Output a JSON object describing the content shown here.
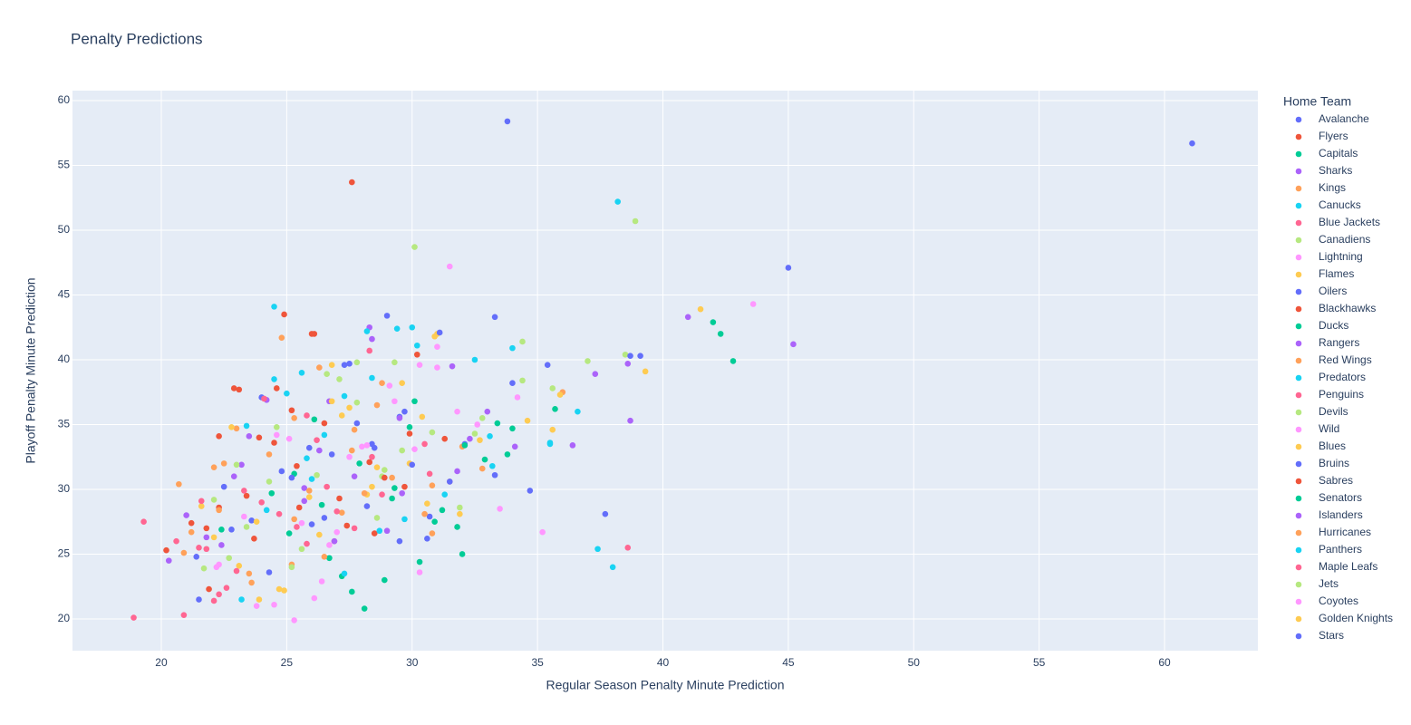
{
  "chart_data": {
    "type": "scatter",
    "title": "Penalty Predictions",
    "x_label": "Regular Season Penalty Minute Prediction",
    "y_label": "Playoff Penalty Minute Prediction",
    "legend_title": "Home Team",
    "legend_position": "right",
    "grid": true,
    "xlim": [
      16.46,
      63.72
    ],
    "ylim": [
      17.55,
      60.77
    ],
    "xticks": [
      20,
      25,
      30,
      35,
      40,
      45,
      50,
      55,
      60
    ],
    "yticks": [
      20,
      25,
      30,
      35,
      40,
      45,
      50,
      55,
      60
    ],
    "series": [
      {
        "name": "Avalanche",
        "color": "#636efa",
        "x": [
          33.8,
          61.1,
          45,
          22.5,
          26,
          28.4,
          30.7,
          24.8,
          29.5,
          33.3
        ],
        "values": [
          58.4,
          56.7,
          47.1,
          30.2,
          27.3,
          33.5,
          27.9,
          31.4,
          35.6,
          43.3
        ]
      },
      {
        "name": "Flyers",
        "color": "#EF553B",
        "x": [
          27.6,
          24.9,
          22.9,
          20.2,
          25.5,
          28.3,
          30.2,
          26.1,
          23.4,
          21.8
        ],
        "values": [
          53.7,
          43.5,
          37.8,
          25.3,
          28.6,
          32.1,
          40.4,
          42,
          29.5,
          27
        ]
      },
      {
        "name": "Capitals",
        "color": "#00cc96",
        "x": [
          42.3,
          28.1,
          32,
          27.6,
          25.3,
          30.3,
          33.8,
          26.4,
          29.2,
          22.4
        ],
        "values": [
          42,
          20.8,
          25,
          22.1,
          31.2,
          24.4,
          32.7,
          28.8,
          29.3,
          26.9
        ]
      },
      {
        "name": "Sharks",
        "color": "#ab63fa",
        "x": [
          41,
          45.2,
          38.7,
          28.3,
          21,
          26.7,
          23.2,
          31.6,
          29,
          25.7
        ],
        "values": [
          43.3,
          41.2,
          35.3,
          42.5,
          28,
          36.8,
          31.9,
          39.5,
          26.8,
          30.1
        ]
      },
      {
        "name": "Kings",
        "color": "#FFA15A",
        "x": [
          24.8,
          20.7,
          26.3,
          22.5,
          30.8,
          28.6,
          25.2,
          32,
          27.2,
          23.6
        ],
        "values": [
          41.7,
          30.4,
          39.4,
          32,
          26.6,
          36.5,
          24.2,
          33.3,
          28.2,
          22.8
        ]
      },
      {
        "name": "Canucks",
        "color": "#19d3f3",
        "x": [
          38.2,
          24.5,
          38,
          37.4,
          36.6,
          35.5,
          30,
          28.4,
          25.6,
          23.2
        ],
        "values": [
          52.2,
          44.1,
          24,
          25.4,
          36,
          33.5,
          42.5,
          38.6,
          39,
          21.5
        ]
      },
      {
        "name": "Blue Jackets",
        "color": "#FF6692",
        "x": [
          18.9,
          38.6,
          19.3,
          22.1,
          25.8,
          28.3,
          24,
          30.5,
          21.5,
          26.9
        ],
        "values": [
          20.1,
          25.5,
          27.5,
          21.4,
          35.7,
          40.7,
          29,
          33.5,
          25.5,
          26
        ]
      },
      {
        "name": "Canadiens",
        "color": "#B6E880",
        "x": [
          38.9,
          30.1,
          37,
          38.5,
          34.4,
          21.7,
          25.2,
          27.8,
          32.5,
          28.8
        ],
        "values": [
          50.7,
          48.7,
          39.9,
          40.4,
          41.4,
          23.9,
          24,
          36.7,
          34.3,
          31
        ]
      },
      {
        "name": "Lightning",
        "color": "#FF97FF",
        "x": [
          31.5,
          43.6,
          35.2,
          30.3,
          31,
          28,
          23.8,
          26.7,
          33.5,
          25.3
        ],
        "values": [
          47.2,
          44.3,
          26.7,
          39.6,
          41,
          33.3,
          21,
          25.7,
          28.5,
          19.9
        ]
      },
      {
        "name": "Flames",
        "color": "#FECB52",
        "x": [
          41.5,
          39.3,
          35.6,
          31,
          26.8,
          23.9,
          28.6,
          30.6,
          22.1,
          34.6
        ],
        "values": [
          43.9,
          39.1,
          34.6,
          42,
          36.8,
          21.5,
          31.7,
          28.9,
          26.3,
          35.3
        ]
      },
      {
        "name": "Oilers",
        "color": "#636efa",
        "x": [
          39.1,
          35.4,
          33.3,
          24,
          27.5,
          29.5,
          31.1,
          21.5,
          25.9,
          28.2
        ],
        "values": [
          40.3,
          39.6,
          31.1,
          37.1,
          39.7,
          26,
          42.1,
          21.5,
          33.2,
          28.7
        ]
      },
      {
        "name": "Blackhawks",
        "color": "#EF553B",
        "x": [
          26,
          23.9,
          22.3,
          27.1,
          24.6,
          29.7,
          21.2,
          31.3,
          25.2,
          28.5
        ],
        "values": [
          42,
          34,
          28.6,
          29.3,
          37.8,
          30.2,
          27.4,
          33.9,
          36.1,
          26.6
        ]
      },
      {
        "name": "Ducks",
        "color": "#00cc96",
        "x": [
          42,
          42.8,
          35.7,
          34,
          32.9,
          30.1,
          27.2,
          29.3,
          26.1,
          31.8
        ],
        "values": [
          42.9,
          39.9,
          36.2,
          34.7,
          32.3,
          36.8,
          23.3,
          30.1,
          35.4,
          27.1
        ]
      },
      {
        "name": "Rangers",
        "color": "#ab63fa",
        "x": [
          38.6,
          37.3,
          34.1,
          29.5,
          27.7,
          24.2,
          22.4,
          32.3,
          20.3,
          26.3
        ],
        "values": [
          39.7,
          38.9,
          33.3,
          35.5,
          31,
          36.9,
          25.7,
          33.9,
          24.5,
          33
        ]
      },
      {
        "name": "Red Wings",
        "color": "#FFA15A",
        "x": [
          36,
          32.8,
          28.8,
          25.3,
          23.5,
          27.7,
          30.8,
          22.1,
          20.9,
          25.9
        ],
        "values": [
          37.5,
          31.6,
          38.2,
          27.7,
          23.5,
          34.6,
          30.3,
          31.7,
          25.1,
          29.9
        ]
      },
      {
        "name": "Predators",
        "color": "#19d3f3",
        "x": [
          34,
          32.5,
          30.2,
          28.2,
          26.5,
          24.5,
          25.8,
          29.7,
          33.1,
          27.3
        ],
        "values": [
          40.9,
          40,
          41.1,
          42.2,
          34.2,
          38.5,
          32.4,
          27.7,
          34.1,
          23.5
        ]
      },
      {
        "name": "Penguins",
        "color": "#FF6692",
        "x": [
          21.8,
          24.1,
          26.2,
          28.8,
          23.3,
          20.6,
          31.5,
          27,
          25.4,
          22.6
        ],
        "values": [
          25.4,
          37,
          33.8,
          29.6,
          29.9,
          26,
          30.6,
          28.3,
          27.1,
          22.4
        ]
      },
      {
        "name": "Devils",
        "color": "#B6E880",
        "x": [
          35.6,
          32.8,
          29.3,
          27.1,
          24.6,
          23,
          31.9,
          26.2,
          28.6,
          22.7
        ],
        "values": [
          37.8,
          35.5,
          39.8,
          38.5,
          34.8,
          31.9,
          28.6,
          31.1,
          27.8,
          24.7
        ]
      },
      {
        "name": "Wild",
        "color": "#FF97FF",
        "x": [
          34.2,
          32.6,
          31,
          29.1,
          27.5,
          24.6,
          22.3,
          26.4,
          25.6,
          30.1
        ],
        "values": [
          37.1,
          35,
          39.4,
          38,
          32.5,
          34.2,
          24.2,
          22.9,
          27.4,
          33.1
        ]
      },
      {
        "name": "Blues",
        "color": "#FECB52",
        "x": [
          35.9,
          32.7,
          30.4,
          27.5,
          24.9,
          23.1,
          28.2,
          26.3,
          29.9,
          21.6
        ],
        "values": [
          37.3,
          33.8,
          35.6,
          36.3,
          22.2,
          24.1,
          29.6,
          26.5,
          32,
          28.7
        ]
      },
      {
        "name": "Bruins",
        "color": "#636efa",
        "x": [
          37.7,
          34,
          32.1,
          29.7,
          27.8,
          25.2,
          23.6,
          26.8,
          30.6,
          28.5
        ],
        "values": [
          28.1,
          38.2,
          33.5,
          36,
          35.1,
          30.9,
          27.6,
          32.7,
          26.2,
          33.2
        ]
      },
      {
        "name": "Sabres",
        "color": "#EF553B",
        "x": [
          23.1,
          24.5,
          26.5,
          22.3,
          28.9,
          21.9,
          25.4,
          29.9,
          27.4,
          23.7
        ],
        "values": [
          37.7,
          33.6,
          35.1,
          34.1,
          30.9,
          22.3,
          31.8,
          34.3,
          27.2,
          26.2
        ]
      },
      {
        "name": "Senators",
        "color": "#00cc96",
        "x": [
          33.4,
          32.1,
          31.2,
          28.9,
          26.7,
          25.1,
          24.4,
          29.9,
          27.9,
          30.9
        ],
        "values": [
          35.1,
          33.4,
          28.4,
          23,
          24.7,
          26.6,
          29.7,
          34.8,
          32,
          27.5
        ]
      },
      {
        "name": "Islanders",
        "color": "#ab63fa",
        "x": [
          36.4,
          33,
          28.4,
          25.7,
          23.5,
          21.8,
          26.9,
          31.8,
          29.6,
          22.9
        ],
        "values": [
          33.4,
          36,
          41.6,
          29.1,
          34.1,
          26.3,
          26,
          31.4,
          29.7,
          31
        ]
      },
      {
        "name": "Hurricanes",
        "color": "#FFA15A",
        "x": [
          30.5,
          27.6,
          25.3,
          23,
          21.2,
          28.1,
          26.5,
          24.3,
          29.2,
          22.3
        ],
        "values": [
          28.1,
          33,
          35.5,
          34.7,
          26.7,
          29.7,
          24.8,
          32.7,
          30.9,
          28.4
        ]
      },
      {
        "name": "Panthers",
        "color": "#19d3f3",
        "x": [
          35.5,
          33.2,
          29.4,
          27.3,
          25,
          23.4,
          24.2,
          31.3,
          28.7,
          26
        ],
        "values": [
          33.6,
          31.8,
          42.4,
          37.2,
          37.4,
          34.9,
          28.4,
          29.6,
          26.8,
          30.8
        ]
      },
      {
        "name": "Maple Leafs",
        "color": "#FF6692",
        "x": [
          20.9,
          22.3,
          24.7,
          26.6,
          28.4,
          23,
          25.8,
          21.6,
          27.7,
          30.7
        ],
        "values": [
          20.3,
          21.9,
          28.1,
          30.2,
          32.5,
          23.7,
          25.8,
          29.1,
          27,
          31.2
        ]
      },
      {
        "name": "Jets",
        "color": "#B6E880",
        "x": [
          34.4,
          30.8,
          27.8,
          26.6,
          24.3,
          22.1,
          25.6,
          28.9,
          23.4,
          29.6
        ],
        "values": [
          38.4,
          34.4,
          39.8,
          38.9,
          30.6,
          29.2,
          25.4,
          31.5,
          27.1,
          33
        ]
      },
      {
        "name": "Coyotes",
        "color": "#FF97FF",
        "x": [
          30.3,
          28.2,
          27,
          25.1,
          26.1,
          24.5,
          22.2,
          29.3,
          31.8,
          23.3
        ],
        "values": [
          23.6,
          33.4,
          26.7,
          33.9,
          21.6,
          21.1,
          24,
          36.8,
          36,
          27.9
        ]
      },
      {
        "name": "Golden Knights",
        "color": "#FECB52",
        "x": [
          30.9,
          29.6,
          27.2,
          26.8,
          24.7,
          23.8,
          25.9,
          28.4,
          31.9,
          22.8
        ],
        "values": [
          41.8,
          38.2,
          35.7,
          39.6,
          22.3,
          27.5,
          29.4,
          30.2,
          28.1,
          34.8
        ]
      },
      {
        "name": "Stars",
        "color": "#636efa",
        "x": [
          38.7,
          34.7,
          31.5,
          29,
          27.3,
          24.3,
          22.8,
          26.5,
          30,
          21.4
        ],
        "values": [
          40.3,
          29.9,
          30.6,
          43.4,
          39.6,
          23.6,
          26.9,
          27.8,
          31.9,
          24.8
        ]
      }
    ]
  }
}
